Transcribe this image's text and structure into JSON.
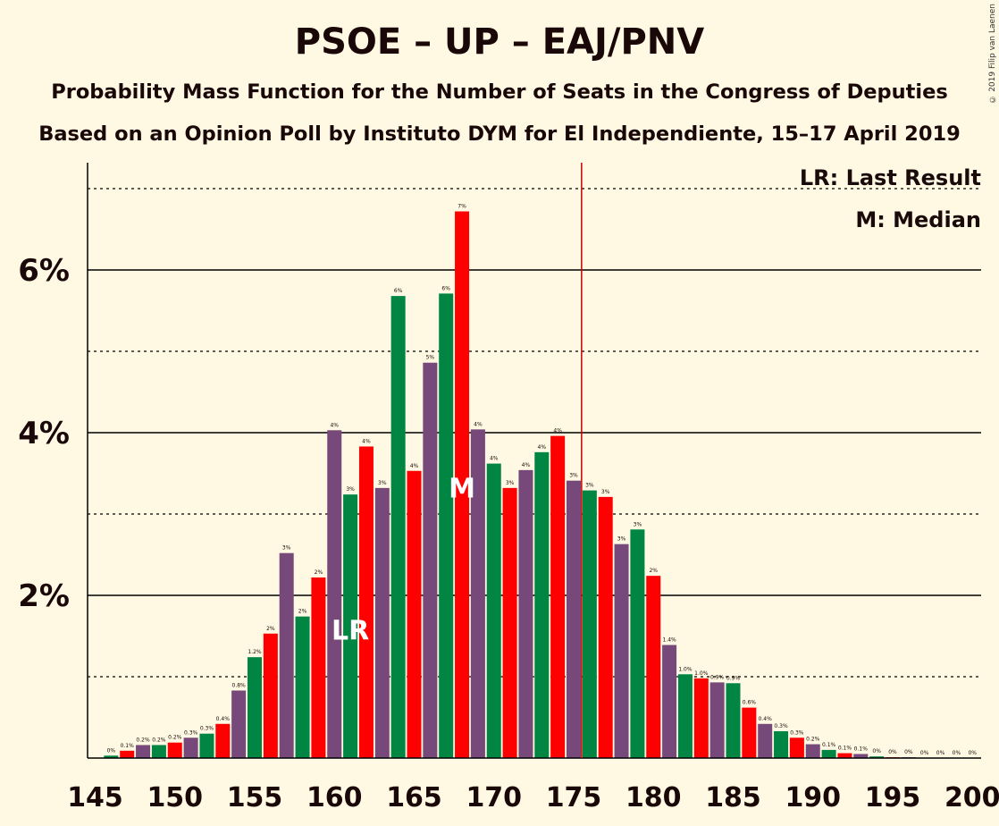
{
  "chart_data": {
    "type": "bar",
    "title": "PSOE – UP – EAJ/PNV",
    "subtitle": "Probability Mass Function for the Number of Seats in the Congress of Deputies",
    "subtitle2": "Based on an Opinion Poll by Instituto DYM for El Independiente, 15–17 April 2019",
    "copyright": "© 2019 Filip van Laenen",
    "legend": {
      "lr": "LR: Last Result",
      "m": "M: Median",
      "position": "top-right"
    },
    "x_range": [
      145,
      200
    ],
    "x_tick_labels": [
      "145",
      "150",
      "155",
      "160",
      "165",
      "170",
      "175",
      "180",
      "185",
      "190",
      "195",
      "200"
    ],
    "y_range": [
      0,
      7.3
    ],
    "y_tick_labels": [
      "2%",
      "4%",
      "6%"
    ],
    "majority_line": 176,
    "last_result": {
      "seat": 161,
      "label": "LR"
    },
    "median": {
      "seat": 168,
      "label": "M"
    },
    "colors": {
      "purple": "#76497A",
      "green": "#008543",
      "red": "#FF0000",
      "majority": "#CC0000",
      "background": "#FFF8E2"
    },
    "seats": [
      146,
      147,
      148,
      149,
      150,
      151,
      152,
      153,
      154,
      155,
      156,
      157,
      158,
      159,
      160,
      161,
      162,
      163,
      164,
      165,
      166,
      167,
      168,
      169,
      170,
      171,
      172,
      173,
      174,
      175,
      176,
      177,
      178,
      179,
      180,
      181,
      182,
      183,
      184,
      185,
      186,
      187,
      188,
      189,
      190,
      191,
      192,
      193,
      194,
      195,
      196,
      197,
      198,
      199,
      200
    ],
    "values": [
      0.03,
      0.09,
      0.16,
      0.16,
      0.19,
      0.25,
      0.3,
      0.42,
      0.83,
      1.24,
      1.53,
      2.52,
      1.74,
      2.22,
      4.03,
      3.24,
      3.83,
      3.32,
      5.68,
      3.53,
      4.86,
      5.71,
      6.72,
      4.04,
      3.62,
      3.32,
      3.54,
      3.76,
      3.96,
      3.41,
      3.29,
      3.21,
      2.63,
      2.81,
      2.24,
      1.39,
      1.03,
      0.98,
      0.93,
      0.92,
      0.62,
      0.42,
      0.33,
      0.25,
      0.17,
      0.1,
      0.06,
      0.05,
      0.02,
      0.01,
      0.01,
      0.0,
      0.0,
      0.0,
      0.0
    ],
    "value_labels": [
      "0%",
      "0.1%",
      "0.2%",
      "0.2%",
      "0.2%",
      "0.3%",
      "0.3%",
      "0.4%",
      "0.8%",
      "1.2%",
      "2%",
      "3%",
      "2%",
      "2%",
      "4%",
      "3%",
      "4%",
      "3%",
      "6%",
      "4%",
      "5%",
      "6%",
      "7%",
      "4%",
      "4%",
      "3%",
      "4%",
      "4%",
      "4%",
      "3%",
      "3%",
      "3%",
      "3%",
      "3%",
      "2%",
      "1.4%",
      "1.0%",
      "1.0%",
      "0.9%",
      "0.9%",
      "0.6%",
      "0.4%",
      "0.3%",
      "0.3%",
      "0.2%",
      "0.1%",
      "0.1%",
      "0.1%",
      "0%",
      "0%",
      "0%",
      "0%",
      "0%",
      "0%",
      "0%"
    ]
  }
}
